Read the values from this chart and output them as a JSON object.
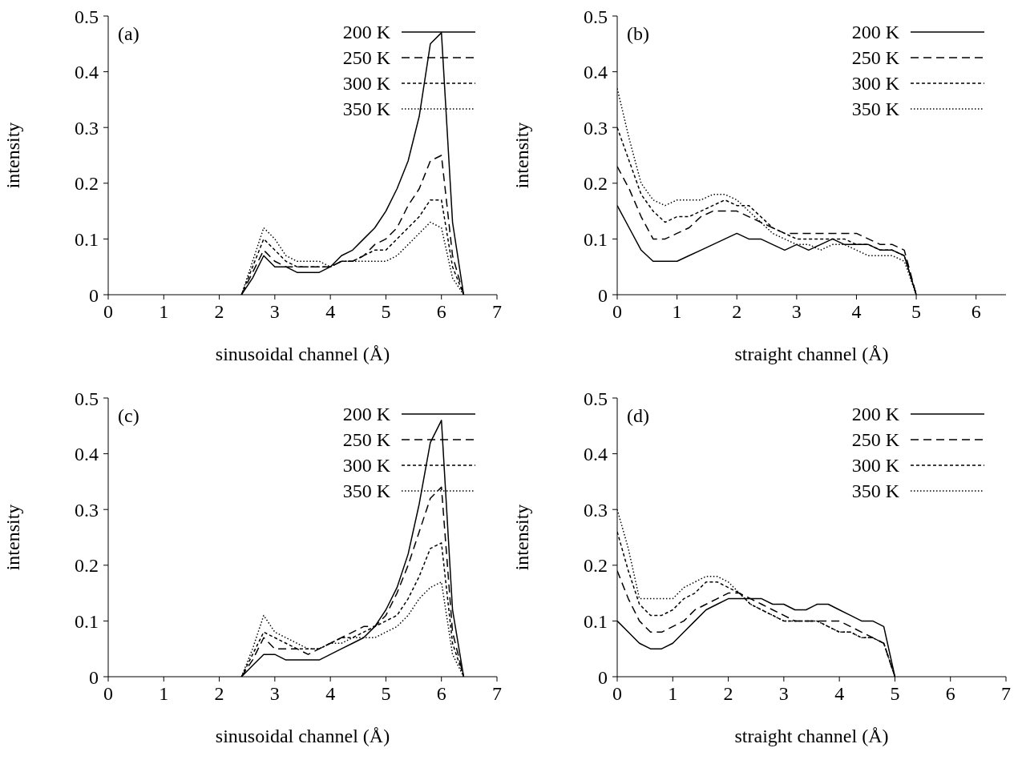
{
  "chart_data": [
    {
      "type": "line",
      "annotations": [
        "(a)"
      ],
      "xlabel": "sinusoidal channel (Å)",
      "ylabel": "intensity",
      "xlim": [
        0,
        7
      ],
      "xticks": [
        0,
        1,
        2,
        3,
        4,
        5,
        6,
        7
      ],
      "ylim": [
        0,
        0.5
      ],
      "yticks": [
        0,
        0.1,
        0.2,
        0.3,
        0.4,
        0.5
      ],
      "legend": "top right",
      "x": [
        2.4,
        2.6,
        2.8,
        3.0,
        3.2,
        3.4,
        3.6,
        3.8,
        4.0,
        4.2,
        4.4,
        4.6,
        4.8,
        5.0,
        5.2,
        5.4,
        5.6,
        5.8,
        6.0,
        6.2,
        6.4
      ],
      "series": [
        {
          "name": "200 K",
          "color": "#000000",
          "line_style": "solid",
          "values": [
            0,
            0.03,
            0.07,
            0.05,
            0.05,
            0.04,
            0.04,
            0.04,
            0.05,
            0.07,
            0.08,
            0.1,
            0.12,
            0.15,
            0.19,
            0.24,
            0.32,
            0.45,
            0.47,
            0.13,
            0
          ]
        },
        {
          "name": "250 K",
          "color": "#000000",
          "line_style": "dashed",
          "values": [
            0,
            0.04,
            0.08,
            0.06,
            0.05,
            0.05,
            0.05,
            0.05,
            0.05,
            0.06,
            0.06,
            0.07,
            0.09,
            0.1,
            0.12,
            0.16,
            0.19,
            0.24,
            0.25,
            0.07,
            0
          ]
        },
        {
          "name": "300 K",
          "color": "#000000",
          "line_style": "dotted",
          "values": [
            0,
            0.05,
            0.1,
            0.08,
            0.06,
            0.05,
            0.05,
            0.05,
            0.05,
            0.06,
            0.06,
            0.07,
            0.08,
            0.08,
            0.1,
            0.12,
            0.14,
            0.17,
            0.17,
            0.05,
            0
          ]
        },
        {
          "name": "350 K",
          "color": "#000000",
          "line_style": "dotted",
          "values": [
            0,
            0.06,
            0.12,
            0.1,
            0.07,
            0.06,
            0.06,
            0.06,
            0.05,
            0.06,
            0.06,
            0.06,
            0.06,
            0.06,
            0.07,
            0.09,
            0.11,
            0.13,
            0.12,
            0.03,
            0
          ]
        }
      ]
    },
    {
      "type": "line",
      "annotations": [
        "(b)"
      ],
      "xlabel": "straight channel (Å)",
      "ylabel": "intensity",
      "xlim": [
        0,
        6.5
      ],
      "xticks": [
        0,
        1,
        2,
        3,
        4,
        5,
        6
      ],
      "ylim": [
        0,
        0.5
      ],
      "yticks": [
        0,
        0.1,
        0.2,
        0.3,
        0.4,
        0.5
      ],
      "legend": "top right",
      "x": [
        0,
        0.2,
        0.4,
        0.6,
        0.8,
        1.0,
        1.2,
        1.4,
        1.6,
        1.8,
        2.0,
        2.2,
        2.4,
        2.6,
        2.8,
        3.0,
        3.2,
        3.4,
        3.6,
        3.8,
        4.0,
        4.2,
        4.4,
        4.6,
        4.8,
        5.0
      ],
      "series": [
        {
          "name": "200 K",
          "color": "#000000",
          "line_style": "solid",
          "values": [
            0.16,
            0.12,
            0.08,
            0.06,
            0.06,
            0.06,
            0.07,
            0.08,
            0.09,
            0.1,
            0.11,
            0.1,
            0.1,
            0.09,
            0.08,
            0.09,
            0.08,
            0.09,
            0.1,
            0.09,
            0.09,
            0.09,
            0.08,
            0.08,
            0.07,
            0
          ]
        },
        {
          "name": "250 K",
          "color": "#000000",
          "line_style": "dashed",
          "values": [
            0.23,
            0.19,
            0.14,
            0.1,
            0.1,
            0.11,
            0.12,
            0.14,
            0.15,
            0.15,
            0.15,
            0.14,
            0.13,
            0.12,
            0.11,
            0.11,
            0.11,
            0.11,
            0.11,
            0.11,
            0.11,
            0.1,
            0.09,
            0.09,
            0.08,
            0
          ]
        },
        {
          "name": "300 K",
          "color": "#000000",
          "line_style": "dotted",
          "values": [
            0.3,
            0.24,
            0.18,
            0.15,
            0.13,
            0.14,
            0.14,
            0.15,
            0.16,
            0.17,
            0.16,
            0.16,
            0.14,
            0.12,
            0.11,
            0.1,
            0.1,
            0.1,
            0.1,
            0.1,
            0.09,
            0.09,
            0.08,
            0.08,
            0.07,
            0
          ]
        },
        {
          "name": "350 K",
          "color": "#000000",
          "line_style": "dotted",
          "values": [
            0.37,
            0.28,
            0.2,
            0.17,
            0.16,
            0.17,
            0.17,
            0.17,
            0.18,
            0.18,
            0.17,
            0.15,
            0.13,
            0.11,
            0.1,
            0.09,
            0.09,
            0.08,
            0.09,
            0.09,
            0.08,
            0.07,
            0.07,
            0.07,
            0.06,
            0
          ]
        }
      ]
    },
    {
      "type": "line",
      "annotations": [
        "(c)"
      ],
      "xlabel": "sinusoidal channel (Å)",
      "ylabel": "intensity",
      "xlim": [
        0,
        7
      ],
      "xticks": [
        0,
        1,
        2,
        3,
        4,
        5,
        6,
        7
      ],
      "ylim": [
        0,
        0.5
      ],
      "yticks": [
        0,
        0.1,
        0.2,
        0.3,
        0.4,
        0.5
      ],
      "legend": "top right",
      "x": [
        2.4,
        2.6,
        2.8,
        3.0,
        3.2,
        3.4,
        3.6,
        3.8,
        4.0,
        4.2,
        4.4,
        4.6,
        4.8,
        5.0,
        5.2,
        5.4,
        5.6,
        5.8,
        6.0,
        6.2,
        6.4
      ],
      "series": [
        {
          "name": "200 K",
          "color": "#000000",
          "line_style": "solid",
          "values": [
            0,
            0.02,
            0.04,
            0.04,
            0.03,
            0.03,
            0.03,
            0.03,
            0.04,
            0.05,
            0.06,
            0.07,
            0.09,
            0.12,
            0.16,
            0.22,
            0.31,
            0.42,
            0.46,
            0.12,
            0
          ]
        },
        {
          "name": "250 K",
          "color": "#000000",
          "line_style": "dashed",
          "values": [
            0,
            0.03,
            0.07,
            0.05,
            0.05,
            0.05,
            0.04,
            0.05,
            0.06,
            0.07,
            0.08,
            0.09,
            0.09,
            0.11,
            0.15,
            0.2,
            0.26,
            0.32,
            0.34,
            0.08,
            0
          ]
        },
        {
          "name": "300 K",
          "color": "#000000",
          "line_style": "dotted",
          "values": [
            0,
            0.04,
            0.08,
            0.07,
            0.06,
            0.05,
            0.05,
            0.05,
            0.06,
            0.07,
            0.07,
            0.08,
            0.09,
            0.1,
            0.11,
            0.14,
            0.18,
            0.23,
            0.24,
            0.06,
            0
          ]
        },
        {
          "name": "350 K",
          "color": "#000000",
          "line_style": "dotted",
          "values": [
            0,
            0.05,
            0.11,
            0.08,
            0.07,
            0.06,
            0.05,
            0.05,
            0.06,
            0.06,
            0.07,
            0.07,
            0.07,
            0.08,
            0.09,
            0.11,
            0.14,
            0.16,
            0.17,
            0.04,
            0
          ]
        }
      ]
    },
    {
      "type": "line",
      "annotations": [
        "(d)"
      ],
      "xlabel": "straight channel (Å)",
      "ylabel": "intensity",
      "xlim": [
        0,
        7
      ],
      "xticks": [
        0,
        1,
        2,
        3,
        4,
        5,
        6,
        7
      ],
      "ylim": [
        0,
        0.5
      ],
      "yticks": [
        0,
        0.1,
        0.2,
        0.3,
        0.4,
        0.5
      ],
      "legend": "top right",
      "x": [
        0,
        0.2,
        0.4,
        0.6,
        0.8,
        1.0,
        1.2,
        1.4,
        1.6,
        1.8,
        2.0,
        2.2,
        2.4,
        2.6,
        2.8,
        3.0,
        3.2,
        3.4,
        3.6,
        3.8,
        4.0,
        4.2,
        4.4,
        4.6,
        4.8,
        5.0
      ],
      "series": [
        {
          "name": "200 K",
          "color": "#000000",
          "line_style": "solid",
          "values": [
            0.1,
            0.08,
            0.06,
            0.05,
            0.05,
            0.06,
            0.08,
            0.1,
            0.12,
            0.13,
            0.14,
            0.14,
            0.14,
            0.14,
            0.13,
            0.13,
            0.12,
            0.12,
            0.13,
            0.13,
            0.12,
            0.11,
            0.1,
            0.1,
            0.09,
            0
          ]
        },
        {
          "name": "250 K",
          "color": "#000000",
          "line_style": "dashed",
          "values": [
            0.19,
            0.14,
            0.1,
            0.08,
            0.08,
            0.09,
            0.1,
            0.12,
            0.13,
            0.14,
            0.15,
            0.15,
            0.14,
            0.13,
            0.12,
            0.11,
            0.1,
            0.1,
            0.1,
            0.1,
            0.1,
            0.09,
            0.08,
            0.07,
            0.06,
            0
          ]
        },
        {
          "name": "300 K",
          "color": "#000000",
          "line_style": "dotted",
          "values": [
            0.26,
            0.19,
            0.13,
            0.11,
            0.11,
            0.12,
            0.14,
            0.15,
            0.17,
            0.17,
            0.16,
            0.15,
            0.13,
            0.12,
            0.11,
            0.1,
            0.1,
            0.1,
            0.1,
            0.09,
            0.08,
            0.08,
            0.07,
            0.07,
            0.06,
            0
          ]
        },
        {
          "name": "350 K",
          "color": "#000000",
          "line_style": "dotted",
          "values": [
            0.3,
            0.23,
            0.14,
            0.14,
            0.14,
            0.14,
            0.16,
            0.17,
            0.18,
            0.18,
            0.17,
            0.15,
            0.13,
            0.12,
            0.11,
            0.1,
            0.1,
            0.1,
            0.1,
            0.09,
            0.08,
            0.08,
            0.07,
            0.07,
            0.06,
            0
          ]
        }
      ]
    }
  ]
}
